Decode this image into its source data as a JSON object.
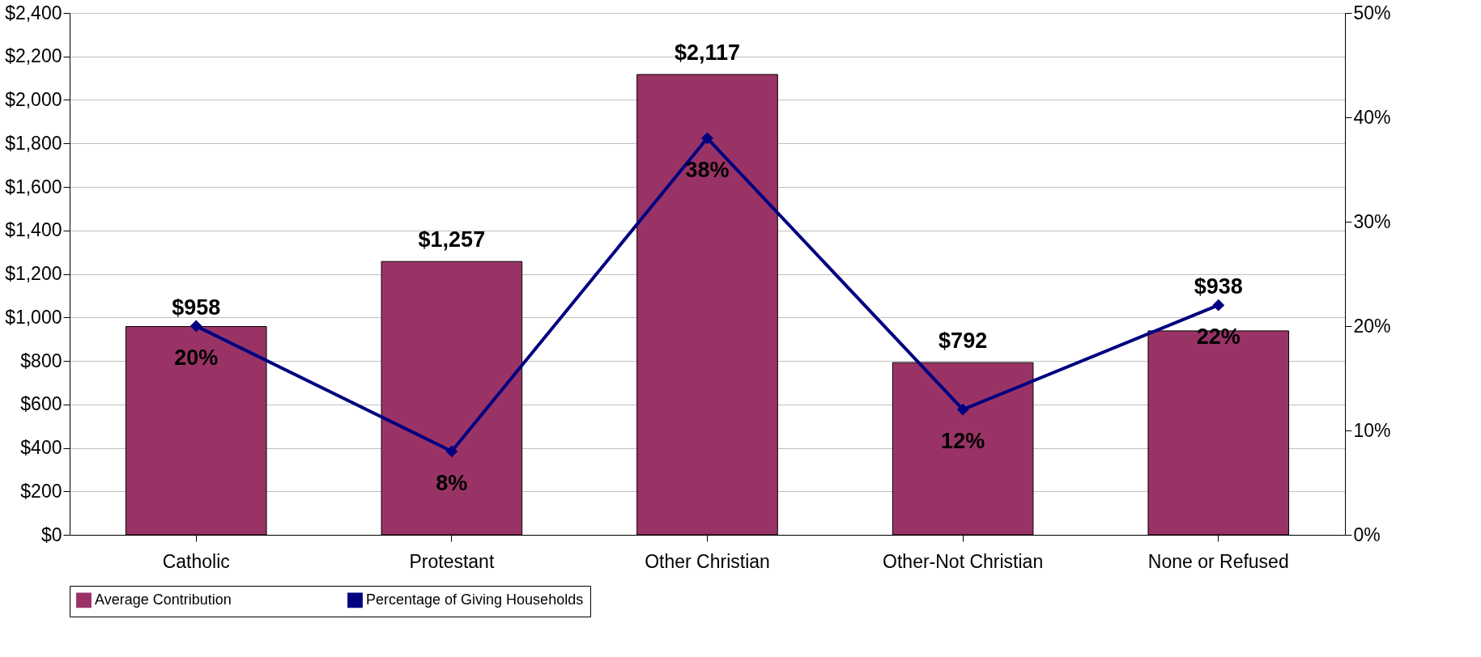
{
  "chart_data": {
    "type": "bar",
    "categories": [
      "Catholic",
      "Protestant",
      "Other Christian",
      "Other-Not Christian",
      "None or Refused"
    ],
    "series": [
      {
        "name": "Average Contribution",
        "color": "#993366",
        "values": [
          958,
          1257,
          2117,
          792,
          938
        ],
        "value_labels": [
          "$958",
          "$1,257",
          "$2,117",
          "$792",
          "$938"
        ]
      },
      {
        "name": "Percentage of Giving Households",
        "type": "line",
        "axis": "y2",
        "color": "#000080",
        "values": [
          20,
          8,
          38,
          12,
          22
        ],
        "value_labels": [
          "20%",
          "8%",
          "38%",
          "12%",
          "22%"
        ]
      }
    ],
    "ylim": [
      0,
      2400
    ],
    "yticks": [
      {
        "value": 0,
        "label": "$0"
      },
      {
        "value": 200,
        "label": "$200"
      },
      {
        "value": 400,
        "label": "$400"
      },
      {
        "value": 600,
        "label": "$600"
      },
      {
        "value": 800,
        "label": "$800"
      },
      {
        "value": 1000,
        "label": "$1,000"
      },
      {
        "value": 1200,
        "label": "$1,200"
      },
      {
        "value": 1400,
        "label": "$1,400"
      },
      {
        "value": 1600,
        "label": "$1,600"
      },
      {
        "value": 1800,
        "label": "$1,800"
      },
      {
        "value": 2000,
        "label": "$2,000"
      },
      {
        "value": 2200,
        "label": "$2,200"
      },
      {
        "value": 2400,
        "label": "$2,400"
      }
    ],
    "y2lim": [
      0,
      50
    ],
    "y2ticks": [
      {
        "value": 0,
        "label": "0%"
      },
      {
        "value": 10,
        "label": "10%"
      },
      {
        "value": 20,
        "label": "20%"
      },
      {
        "value": 30,
        "label": "30%"
      },
      {
        "value": 40,
        "label": "40%"
      },
      {
        "value": 50,
        "label": "50%"
      }
    ],
    "grid": "y",
    "legend": "bottom",
    "marker": "diamond",
    "line_style": "solid"
  }
}
